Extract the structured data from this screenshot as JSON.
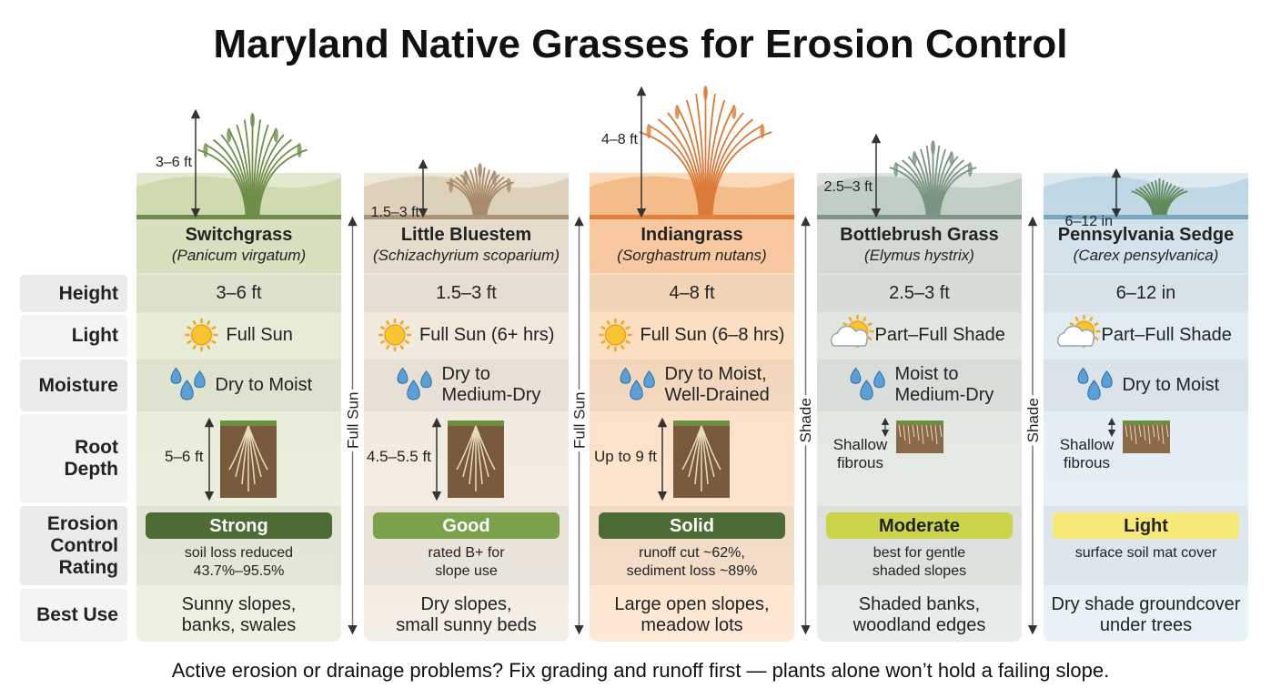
{
  "title": "Maryland Native Grasses for Erosion Control",
  "row_labels": [
    "Height",
    "Light",
    "Moisture",
    "Root\nDepth",
    "Erosion\nControl\nRating",
    "Best Use"
  ],
  "columns": [
    {
      "height_marker": "3–6 ft",
      "name": "Switchgrass",
      "latin": "(Panicum virgatum)",
      "height": "3–6 ft",
      "light": "Full Sun",
      "moisture": "Dry to Moist",
      "root_depth": "5–6 ft",
      "rating": "Strong",
      "rating_note": "soil loss reduced\n43.7%–95.5%",
      "best_use": "Sunny slopes,\nbanks, swales"
    },
    {
      "height_marker": "1.5–3 ft",
      "name": "Little Bluestem",
      "latin": "(Schizachyrium scoparium)",
      "height": "1.5–3 ft",
      "light": "Full Sun (6+ hrs)",
      "moisture": "Dry to\nMedium-Dry",
      "root_depth": "4.5–5.5 ft",
      "rating": "Good",
      "rating_note": "rated B+ for\nslope use",
      "best_use": "Dry slopes,\nsmall sunny beds"
    },
    {
      "height_marker": "4–8 ft",
      "name": "Indiangrass",
      "latin": "(Sorghastrum nutans)",
      "height": "4–8 ft",
      "light": "Full Sun (6–8 hrs)",
      "moisture": "Dry to Moist,\nWell-Drained",
      "root_depth": "Up to 9 ft",
      "rating": "Solid",
      "rating_note": "runoff cut ~62%,\nsediment loss ~89%",
      "best_use": "Large open slopes,\nmeadow lots"
    },
    {
      "height_marker": "2.5–3 ft",
      "name": "Bottlebrush Grass",
      "latin": "(Elymus hystrix)",
      "height": "2.5–3 ft",
      "light": "Part–Full Shade",
      "moisture": "Moist to\nMedium-Dry",
      "root_depth": "Shallow\nfibrous",
      "rating": "Moderate",
      "rating_note": "best for gentle\nshaded slopes",
      "best_use": "Shaded banks,\nwoodland edges"
    },
    {
      "height_marker": "6–12 in",
      "name": "Pennsylvania Sedge",
      "latin": "(Carex pensylvanica)",
      "height": "6–12 in",
      "light": "Part–Full Shade",
      "moisture": "Dry to Moist",
      "root_depth": "Shallow\nfibrous",
      "rating": "Light",
      "rating_note": "surface soil mat cover",
      "best_use": "Dry shade groundcover\nunder trees"
    }
  ],
  "dividers": [
    "Full Sun",
    "Full Sun",
    "Shade",
    "Shade"
  ],
  "footer": "Active erosion or drainage problems? Fix grading and runoff first — plants alone won’t hold a failing slope."
}
